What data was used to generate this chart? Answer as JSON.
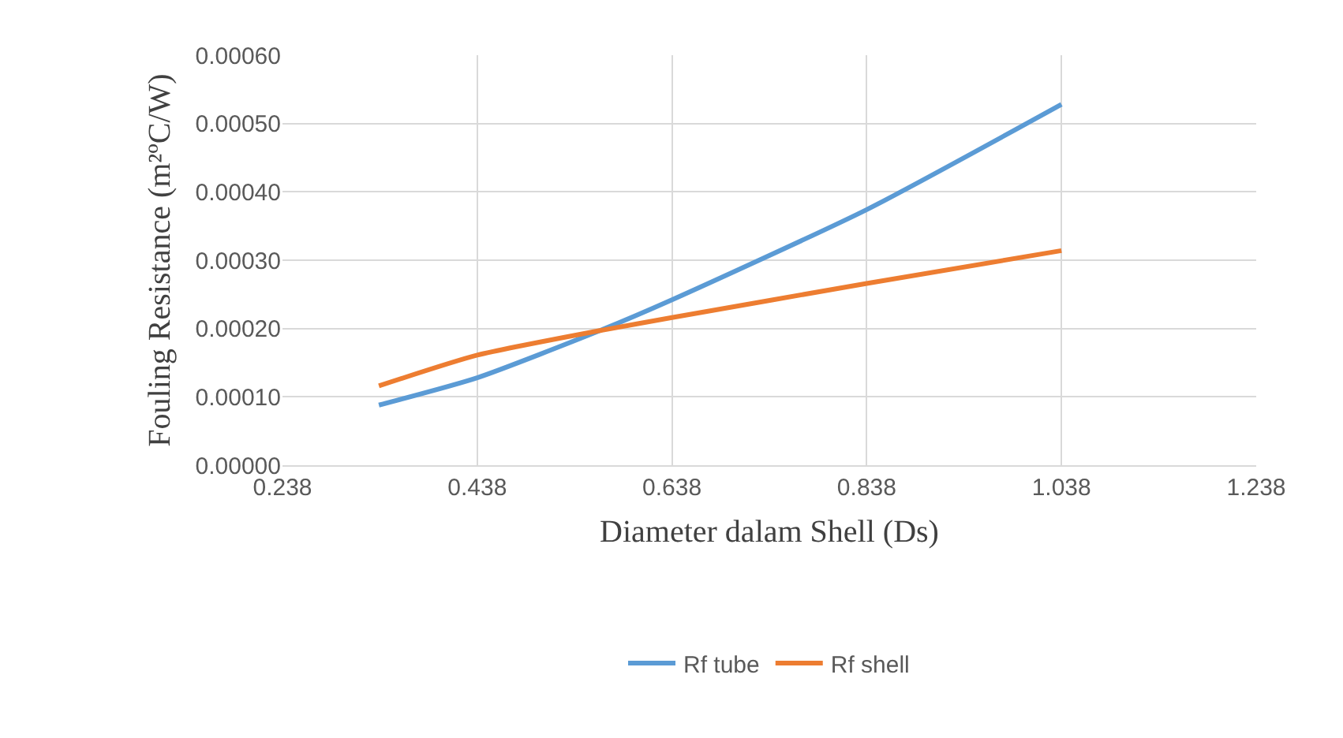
{
  "chart_data": {
    "type": "line",
    "xlabel": "Diameter dalam Shell (Ds)",
    "ylabel": "Fouling Resistance (m²ºC/W)",
    "xlim": [
      0.238,
      1.238
    ],
    "xticks": [
      0.238,
      0.438,
      0.638,
      0.838,
      1.038,
      1.238
    ],
    "ylim": [
      0,
      0.0006
    ],
    "yticks": [
      {
        "value": 0,
        "label": "0.00000"
      },
      {
        "value": 0.0001,
        "label": "0.00010"
      },
      {
        "value": 0.0002,
        "label": "0.00020"
      },
      {
        "value": 0.0003,
        "label": "0.00030"
      },
      {
        "value": 0.0004,
        "label": "0.00040"
      },
      {
        "value": 0.0005,
        "label": "0.00050"
      },
      {
        "value": 0.0006,
        "label": "0.00060"
      }
    ],
    "grid": true,
    "legend": "bottom",
    "marker": "none",
    "line_style": "solid",
    "series": [
      {
        "name": "Rf tube",
        "color": "#5b9bd5",
        "x": [
          0.337,
          0.438,
          0.564,
          0.638,
          0.838,
          1.038
        ],
        "values": [
          8.8e-05,
          0.000128,
          0.000197,
          0.000242,
          0.000374,
          0.000528
        ]
      },
      {
        "name": "Rf shell",
        "color": "#ed7d31",
        "x": [
          0.337,
          0.438,
          0.564,
          0.638,
          0.838,
          1.038
        ],
        "values": [
          0.000116,
          0.000161,
          0.000197,
          0.000216,
          0.000266,
          0.000314
        ]
      }
    ]
  }
}
